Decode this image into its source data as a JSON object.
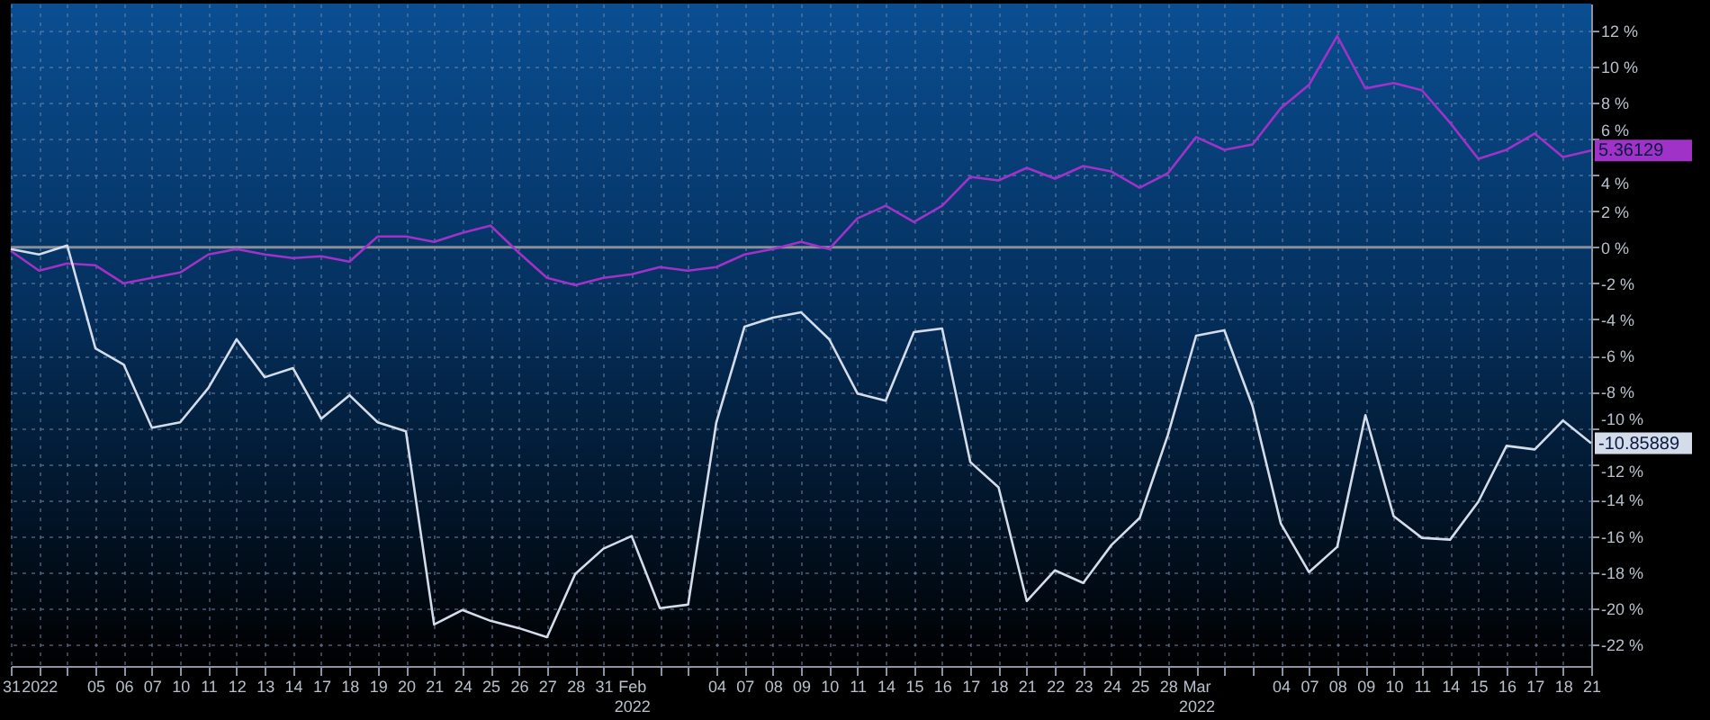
{
  "chart_data": {
    "type": "line",
    "categories": [
      "31",
      "2022",
      null,
      "05",
      "06",
      "07",
      "10",
      "11",
      "12",
      "13",
      "14",
      "17",
      "18",
      "19",
      "20",
      "21",
      "24",
      "25",
      "26",
      "27",
      "28",
      "31",
      "Feb 2022",
      null,
      null,
      "04",
      "07",
      "08",
      "09",
      "10",
      "11",
      "14",
      "15",
      "16",
      "17",
      "18",
      "21",
      "22",
      "23",
      "24",
      "25",
      "28",
      "Mar 2022",
      null,
      null,
      "04",
      "07",
      "08",
      "09",
      "10",
      "11",
      "14",
      "15",
      "16",
      "17",
      "18",
      "21"
    ],
    "series": [
      {
        "color": "#a032c8",
        "values": [
          -0.2,
          -1.3,
          -0.9,
          -1.0,
          -2.0,
          -1.7,
          -1.4,
          -0.4,
          -0.1,
          -0.4,
          -0.6,
          -0.5,
          -0.8,
          0.6,
          0.6,
          0.3,
          0.8,
          1.2,
          -0.3,
          -1.7,
          -2.1,
          -1.7,
          -1.5,
          -1.1,
          -1.3,
          -1.1,
          -0.4,
          -0.1,
          0.3,
          -0.1,
          1.6,
          2.3,
          1.4,
          2.3,
          3.9,
          3.7,
          4.4,
          3.8,
          4.5,
          4.2,
          3.3,
          4.1,
          6.1,
          5.4,
          5.7,
          7.7,
          9.0,
          11.7,
          8.8,
          9.1,
          8.7,
          6.9,
          4.9,
          5.4,
          6.3,
          5.0,
          5.36129
        ],
        "value_labels": [
          null,
          null,
          null,
          null,
          null,
          null,
          null,
          null,
          null,
          null,
          null,
          null,
          null,
          null,
          null,
          null,
          null,
          null,
          null,
          null,
          null,
          null,
          null,
          null,
          null,
          null,
          null,
          null,
          null,
          null,
          null,
          null,
          null,
          null,
          null,
          null,
          null,
          null,
          null,
          null,
          null,
          null,
          null,
          null,
          null,
          null,
          null,
          null,
          null,
          null,
          null,
          null,
          null,
          null,
          null,
          null,
          "5.36129"
        ]
      },
      {
        "color": "#d4dcea",
        "values": [
          -0.1,
          -0.4,
          0.1,
          -5.6,
          -6.5,
          -10.0,
          -9.7,
          -7.8,
          -5.1,
          -7.2,
          -6.7,
          -9.5,
          -8.2,
          -9.7,
          -10.2,
          -20.9,
          -20.1,
          -20.7,
          -21.1,
          -21.6,
          -18.1,
          -16.7,
          -16.0,
          -20.0,
          -19.8,
          -9.7,
          -4.4,
          -3.9,
          -3.6,
          -5.1,
          -8.1,
          -8.5,
          -4.7,
          -4.5,
          -11.9,
          -13.3,
          -19.6,
          -17.9,
          -18.6,
          -16.5,
          -15.0,
          -10.4,
          -4.9,
          -4.6,
          -8.8,
          -15.3,
          -18.0,
          -16.6,
          -9.3,
          -14.9,
          -16.1,
          -16.2,
          -14.1,
          -11.0,
          -11.2,
          -9.6,
          -10.85889
        ],
        "value_labels": [
          null,
          null,
          null,
          null,
          null,
          null,
          null,
          null,
          null,
          null,
          null,
          null,
          null,
          null,
          null,
          null,
          null,
          null,
          null,
          null,
          null,
          null,
          null,
          null,
          null,
          null,
          null,
          null,
          null,
          null,
          null,
          null,
          null,
          null,
          null,
          null,
          null,
          null,
          null,
          null,
          null,
          null,
          null,
          null,
          null,
          null,
          null,
          null,
          null,
          null,
          null,
          null,
          null,
          null,
          null,
          null,
          "-10.85889"
        ]
      }
    ],
    "ylim": [
      -23.2,
      13.5
    ],
    "yticks": [
      {
        "value": 12,
        "label": "12 %"
      },
      {
        "value": 10,
        "label": "10 %"
      },
      {
        "value": 8,
        "label": "8 %"
      },
      {
        "value": 6,
        "label": "6 %"
      },
      {
        "value": 4,
        "label": "4 %"
      },
      {
        "value": 2,
        "label": "2 %"
      },
      {
        "value": 0,
        "label": "0 %"
      },
      {
        "value": -2,
        "label": "-2 %"
      },
      {
        "value": -4,
        "label": "-4 %"
      },
      {
        "value": -6,
        "label": "-6 %"
      },
      {
        "value": -8,
        "label": "-8 %"
      },
      {
        "value": -10,
        "label": "-10 %"
      },
      {
        "value": -12,
        "label": "-12 %"
      },
      {
        "value": -14,
        "label": "-14 %"
      },
      {
        "value": -16,
        "label": "-16 %"
      },
      {
        "value": -18,
        "label": "-18 %"
      },
      {
        "value": -20,
        "label": "-20 %"
      },
      {
        "value": -22,
        "label": "-22 %"
      }
    ],
    "ref_lines": [
      {
        "axis": "y",
        "value": 0,
        "color": "#8a8f98"
      }
    ],
    "grid": true,
    "line_style": "solid",
    "marker": "none"
  }
}
